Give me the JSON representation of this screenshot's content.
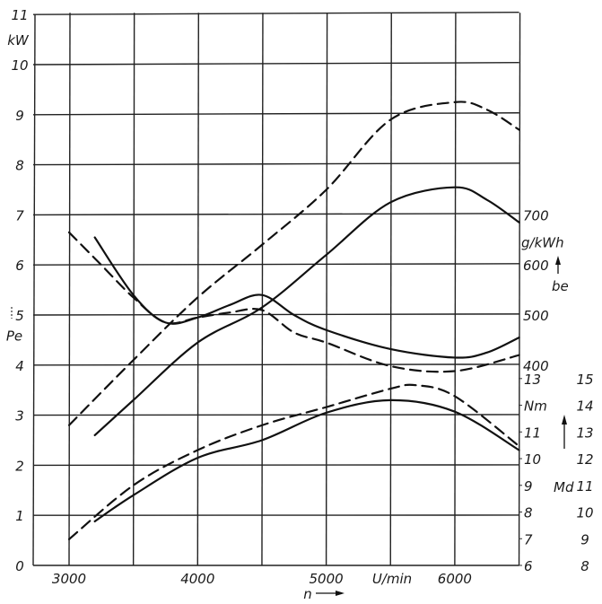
{
  "chart_data": {
    "type": "line",
    "title": "",
    "xlabel": "n",
    "x_unit": "U/min",
    "xlim": [
      2720,
      6500
    ],
    "x_ticks": [
      3000,
      4000,
      5000,
      6000
    ],
    "x_grid": [
      3000,
      3500,
      4000,
      4500,
      5000,
      5500,
      6000,
      6500
    ],
    "grid": true,
    "axes": {
      "left": {
        "label": "Pe",
        "unit": "kW",
        "range": [
          0,
          11
        ],
        "ticks": [
          "0",
          "1",
          "2",
          "3",
          "4",
          "5",
          "6",
          "7",
          "8",
          "9",
          "10",
          "11"
        ]
      },
      "right_be": {
        "label": "be",
        "unit": "g/kWh",
        "ticks": [
          "400",
          "500",
          "600",
          "700"
        ]
      },
      "right_md_1": {
        "label": "Md",
        "unit": "Nm",
        "ticks": [
          "6",
          "7",
          "8",
          "9",
          "10",
          "11",
          "Nm",
          "13"
        ]
      },
      "right_md_2": {
        "ticks": [
          "8",
          "9",
          "10",
          "11",
          "12",
          "13",
          "14",
          "15"
        ]
      }
    },
    "series": [
      {
        "quantity": "Pe",
        "axis": "left",
        "style": "solid",
        "x": [
          3200,
          3500,
          4000,
          4500,
          5000,
          5500,
          6000,
          6250,
          6500
        ],
        "y": [
          2.6,
          3.3,
          4.45,
          5.15,
          6.2,
          7.25,
          7.55,
          7.3,
          6.85
        ]
      },
      {
        "quantity": "Pe",
        "axis": "left",
        "style": "dashed",
        "x": [
          3000,
          3500,
          4000,
          4500,
          5000,
          5500,
          6000,
          6250,
          6500
        ],
        "y": [
          2.8,
          4.1,
          5.35,
          6.4,
          7.5,
          8.9,
          9.25,
          9.1,
          8.7
        ]
      },
      {
        "quantity": "be",
        "axis": "right_be",
        "style": "solid",
        "x": [
          3200,
          3500,
          3750,
          4000,
          4250,
          4500,
          4750,
          5000,
          5500,
          6000,
          6250,
          6500
        ],
        "y": [
          655,
          540,
          485,
          495,
          520,
          540,
          500,
          470,
          432,
          415,
          425,
          455
        ]
      },
      {
        "quantity": "be",
        "axis": "right_be",
        "style": "dashed",
        "x": [
          3000,
          3250,
          3500,
          3750,
          4000,
          4250,
          4500,
          4750,
          5000,
          5500,
          6000,
          6500
        ],
        "y": [
          665,
          600,
          535,
          485,
          495,
          505,
          510,
          465,
          445,
          398,
          388,
          420
        ]
      },
      {
        "quantity": "Md",
        "axis": "right_md_1",
        "style": "solid",
        "x": [
          3200,
          3500,
          4000,
          4500,
          5000,
          5500,
          6000,
          6500
        ],
        "y": [
          7.65,
          8.63,
          10.03,
          10.69,
          11.72,
          12.19,
          11.76,
          10.32
        ]
      },
      {
        "quantity": "Md",
        "axis": "right_md_1",
        "style": "dashed",
        "x": [
          3000,
          3500,
          4000,
          4500,
          5000,
          5500,
          5700,
          6000,
          6500
        ],
        "y": [
          6.98,
          9.0,
          10.32,
          11.25,
          11.93,
          12.62,
          12.75,
          12.34,
          10.47
        ]
      }
    ],
    "labels": {
      "kW": "kW",
      "Pe": "Pe",
      "g_kWh": "g/kWh",
      "be": "be",
      "Md": "Md",
      "U_min": "U/min",
      "n": "n"
    }
  }
}
